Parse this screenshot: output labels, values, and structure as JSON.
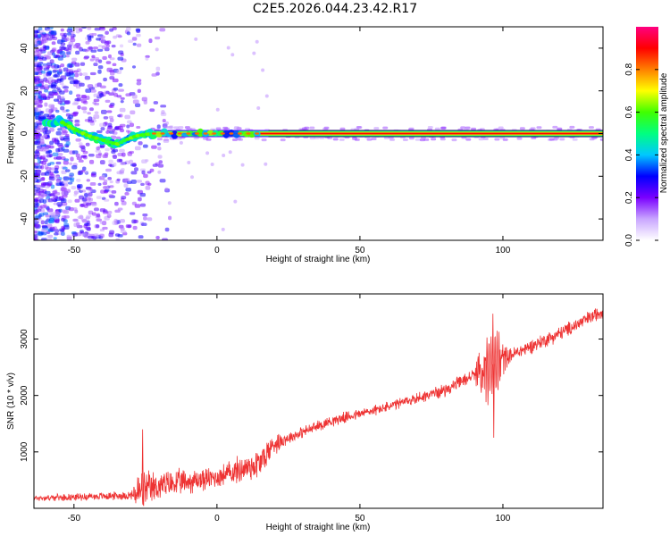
{
  "figure": {
    "title": "C2E5.2026.044.23.42.R17"
  },
  "chart_data": [
    {
      "type": "heatmap",
      "xlabel": "Height of straight line (km)",
      "ylabel": "Frequency (Hz)",
      "xlim": [
        -64,
        135
      ],
      "ylim": [
        -50,
        50
      ],
      "x_ticks": [
        -50,
        0,
        50,
        100
      ],
      "y_ticks": [
        -40,
        -20,
        0,
        20,
        40
      ],
      "colorbar": {
        "label": "Normalized spectral amplitude",
        "range": [
          0,
          1
        ],
        "ticks": [
          0.0,
          0.2,
          0.4,
          0.6,
          0.8
        ],
        "colors": [
          "#ffffff",
          "#c9a6ff",
          "#7a00ff",
          "#0000ff",
          "#00c8ff",
          "#00ff80",
          "#40ff00",
          "#ffff00",
          "#ff8000",
          "#ff0000",
          "#ff0080"
        ]
      },
      "carrier": {
        "frequency_hz": 0,
        "amplitude": 0.9,
        "starts_at_height": -22
      },
      "ridge": [
        {
          "x": -60,
          "y": 4
        },
        {
          "x": -55,
          "y": 6
        },
        {
          "x": -50,
          "y": 2
        },
        {
          "x": -45,
          "y": -1
        },
        {
          "x": -40,
          "y": -3
        },
        {
          "x": -35,
          "y": -5
        },
        {
          "x": -32,
          "y": -3
        },
        {
          "x": -28,
          "y": -1
        },
        {
          "x": -22,
          "y": 0
        }
      ]
    },
    {
      "type": "line",
      "xlabel": "Height of straight line (km)",
      "ylabel": "SNR (10 * v/v)",
      "xlim": [
        -64,
        135
      ],
      "ylim": [
        0,
        3800
      ],
      "x_ticks": [
        -50,
        0,
        50,
        100
      ],
      "y_ticks": [
        1000,
        2000,
        3000
      ],
      "series": [
        {
          "color": "#ee3333",
          "trend": [
            {
              "x": -64,
              "y": 180
            },
            {
              "x": -30,
              "y": 230
            },
            {
              "x": -20,
              "y": 400
            },
            {
              "x": 0,
              "y": 550
            },
            {
              "x": 15,
              "y": 800
            },
            {
              "x": 20,
              "y": 1150
            },
            {
              "x": 40,
              "y": 1550
            },
            {
              "x": 60,
              "y": 1800
            },
            {
              "x": 80,
              "y": 2100
            },
            {
              "x": 95,
              "y": 2500
            },
            {
              "x": 100,
              "y": 2650
            },
            {
              "x": 120,
              "y": 3100
            },
            {
              "x": 135,
              "y": 3500
            }
          ],
          "noise": [
            {
              "x": -64,
              "amp": 60
            },
            {
              "x": -30,
              "amp": 90
            },
            {
              "x": -28,
              "amp": 450
            },
            {
              "x": -20,
              "amp": 300
            },
            {
              "x": 0,
              "amp": 220
            },
            {
              "x": 15,
              "amp": 350
            },
            {
              "x": 25,
              "amp": 120
            },
            {
              "x": 60,
              "amp": 110
            },
            {
              "x": 90,
              "amp": 140
            },
            {
              "x": 94,
              "amp": 700
            },
            {
              "x": 98,
              "amp": 650
            },
            {
              "x": 102,
              "amp": 150
            },
            {
              "x": 135,
              "amp": 150
            }
          ],
          "extremes": [
            {
              "x": -26,
              "y": 1400
            },
            {
              "x": 96.5,
              "y": 3450
            },
            {
              "x": 96.8,
              "y": 1250
            }
          ]
        }
      ]
    }
  ]
}
